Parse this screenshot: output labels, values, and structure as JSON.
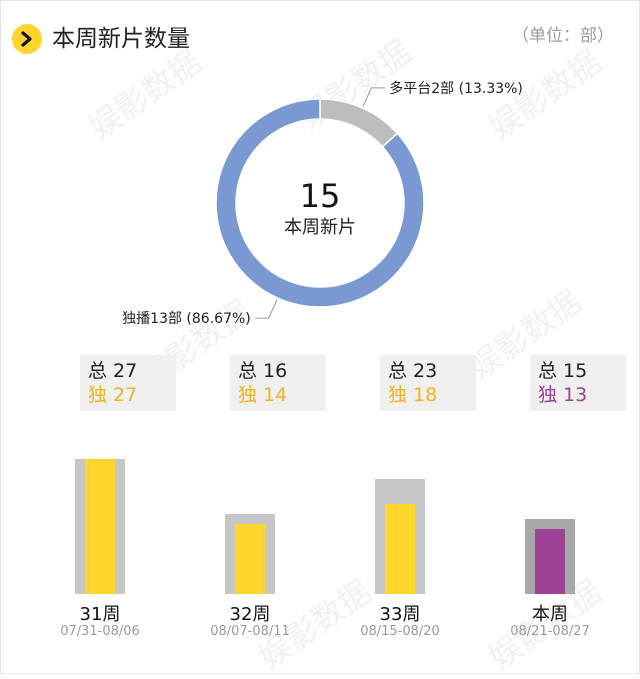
{
  "header": {
    "title": "本周新片数量",
    "unit": "（单位：部）"
  },
  "watermark": "娱影数据",
  "donut": {
    "center_value": "15",
    "center_label": "本周新片"
  },
  "colors": {
    "exclusive": "#7a98d2",
    "multi": "#bdbdbd",
    "accent": "#ffd52e",
    "accent_text": "#f0b31e",
    "current": "#9c4395",
    "total_bar": "#c6c6c6",
    "current_total_bar": "#a8a8a8"
  },
  "chart_data": [
    {
      "type": "pie",
      "title": "本周新片数量",
      "slices": [
        {
          "label": "多平台2部",
          "value": 2,
          "percent": "13.33%",
          "display": "多平台2部 (13.33%)"
        },
        {
          "label": "独播13部",
          "value": 13,
          "percent": "86.67%",
          "display": "独播13部 (86.67%)"
        }
      ]
    },
    {
      "type": "bar",
      "categories": [
        "31周",
        "32周",
        "33周",
        "本周"
      ],
      "dates": [
        "07/31-08/06",
        "08/07-08/11",
        "08/15-08/20",
        "08/21-08/27"
      ],
      "series": [
        {
          "name": "总",
          "values": [
            27,
            16,
            23,
            15
          ]
        },
        {
          "name": "独",
          "values": [
            27,
            14,
            18,
            13
          ]
        }
      ]
    }
  ]
}
